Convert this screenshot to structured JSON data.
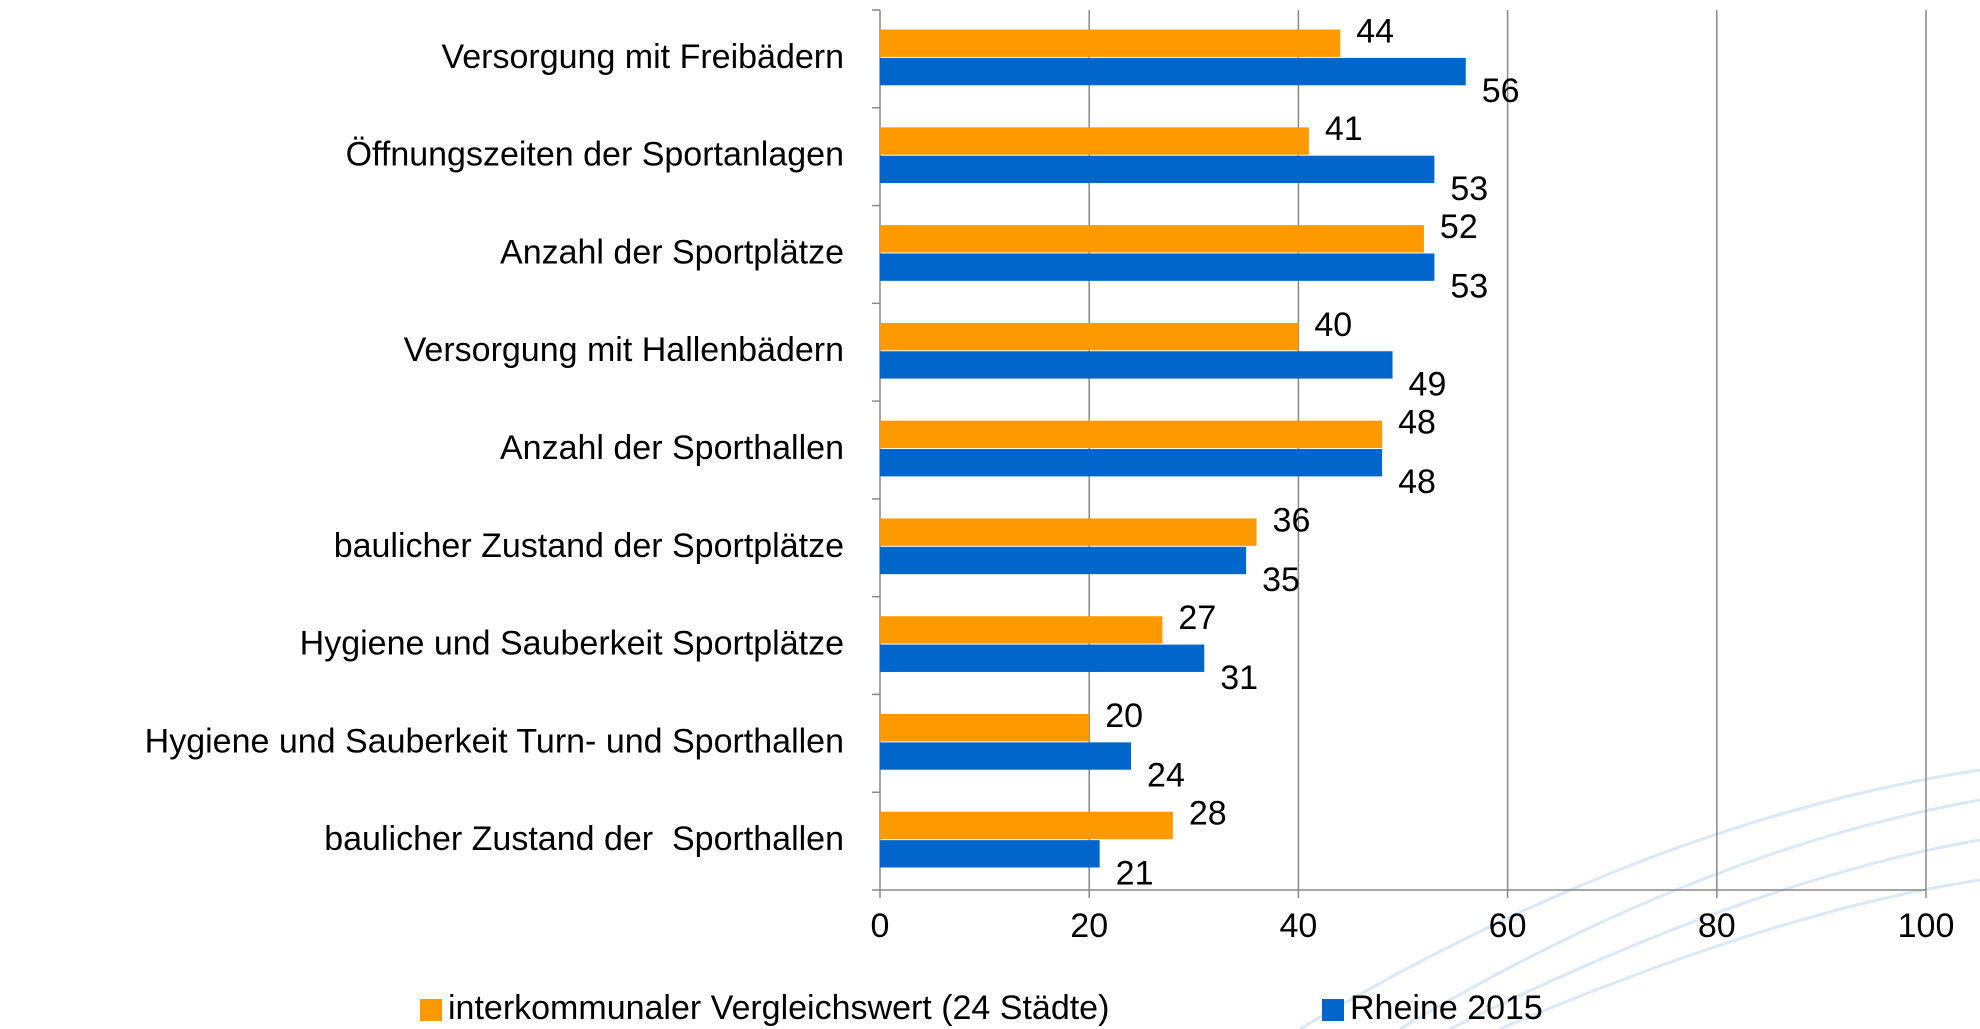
{
  "chart_data": {
    "type": "barh",
    "categories": [
      "Versorgung mit Freibädern",
      "Öffnungszeiten der Sportanlagen",
      "Anzahl der Sportplätze",
      "Versorgung mit Hallenbädern",
      "Anzahl der Sporthallen",
      "baulicher Zustand der Sportplätze",
      "Hygiene und Sauberkeit Sportplätze",
      "Hygiene und Sauberkeit Turn- und Sporthallen",
      "baulicher Zustand der  Sporthallen"
    ],
    "series": [
      {
        "name": "interkommunaler Vergleichswert (24 Städte)",
        "color": "#ff9900",
        "values": [
          44,
          41,
          52,
          40,
          48,
          36,
          27,
          20,
          28
        ]
      },
      {
        "name": "Rheine 2015",
        "color": "#0066cc",
        "values": [
          56,
          53,
          53,
          49,
          48,
          35,
          31,
          24,
          21
        ]
      }
    ],
    "xlim": [
      0,
      100
    ],
    "xticks": [
      0,
      20,
      40,
      60,
      80,
      100
    ],
    "grid": true,
    "legend": "bottom"
  }
}
